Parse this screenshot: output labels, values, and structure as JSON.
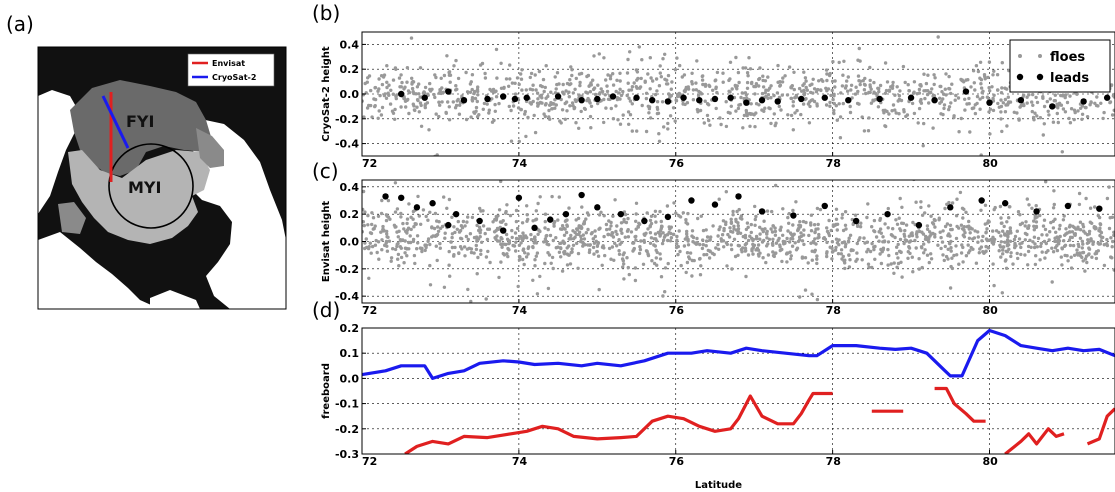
{
  "panels": {
    "a": "(a)",
    "b": "(b)",
    "c": "(c)",
    "d": "(d)"
  },
  "map": {
    "legend": [
      {
        "label": "Envisat",
        "color": "#e02020"
      },
      {
        "label": "CryoSat-2",
        "color": "#1a1aee"
      }
    ],
    "regions": {
      "fyi": "FYI",
      "myi": "MYI"
    }
  },
  "chart_data": [
    {
      "id": "b",
      "type": "scatter",
      "ylabel": "CryoSat-2 height",
      "xlim": [
        72,
        81.6
      ],
      "ylim": [
        -0.5,
        0.5
      ],
      "xticks": [
        72,
        74,
        76,
        78,
        80
      ],
      "yticks": [
        -0.4,
        -0.2,
        0.0,
        0.2,
        0.4
      ],
      "ytick_labels": [
        "-0.4",
        "-0.2",
        "0.0",
        "0.2",
        "0.4"
      ],
      "grid": true,
      "legend_position": "top-right",
      "series": [
        {
          "name": "floes",
          "color": "#999999",
          "points_summary": {
            "x_range": [
              72,
              81.6
            ],
            "center": 0.0,
            "spread": 0.15,
            "count": 1200
          }
        },
        {
          "name": "leads",
          "color": "#000000",
          "points": [
            [
              72.5,
              0.0
            ],
            [
              72.8,
              -0.03
            ],
            [
              73.1,
              0.02
            ],
            [
              73.3,
              -0.05
            ],
            [
              73.6,
              -0.04
            ],
            [
              73.8,
              -0.02
            ],
            [
              73.95,
              -0.04
            ],
            [
              74.1,
              -0.03
            ],
            [
              74.5,
              -0.02
            ],
            [
              74.8,
              -0.05
            ],
            [
              75.0,
              -0.04
            ],
            [
              75.2,
              -0.02
            ],
            [
              75.5,
              -0.03
            ],
            [
              75.7,
              -0.05
            ],
            [
              75.9,
              -0.06
            ],
            [
              76.1,
              -0.03
            ],
            [
              76.3,
              -0.05
            ],
            [
              76.5,
              -0.04
            ],
            [
              76.7,
              -0.03
            ],
            [
              76.9,
              -0.07
            ],
            [
              77.1,
              -0.05
            ],
            [
              77.3,
              -0.06
            ],
            [
              77.6,
              -0.04
            ],
            [
              77.9,
              -0.03
            ],
            [
              78.2,
              -0.05
            ],
            [
              78.6,
              -0.04
            ],
            [
              79.0,
              -0.03
            ],
            [
              79.3,
              -0.05
            ],
            [
              79.7,
              0.02
            ],
            [
              80.0,
              -0.07
            ],
            [
              80.4,
              -0.05
            ],
            [
              80.8,
              -0.1
            ],
            [
              81.2,
              -0.06
            ],
            [
              81.5,
              -0.03
            ]
          ]
        }
      ]
    },
    {
      "id": "c",
      "type": "scatter",
      "ylabel": "Envisat height",
      "xlim": [
        72,
        81.6
      ],
      "ylim": [
        -0.45,
        0.45
      ],
      "xticks": [
        72,
        74,
        76,
        78,
        80
      ],
      "yticks": [
        -0.4,
        -0.2,
        0.0,
        0.2,
        0.4
      ],
      "ytick_labels": [
        "-0.4",
        "-0.2",
        "0.0",
        "0.2",
        "0.4"
      ],
      "grid": true,
      "series": [
        {
          "name": "floes",
          "color": "#999999",
          "points_summary": {
            "x_range": [
              72,
              81.6
            ],
            "center": 0.02,
            "spread": 0.14,
            "count": 1600
          }
        },
        {
          "name": "leads",
          "color": "#000000",
          "points": [
            [
              72.3,
              0.33
            ],
            [
              72.5,
              0.32
            ],
            [
              72.7,
              0.25
            ],
            [
              72.9,
              0.28
            ],
            [
              73.1,
              0.12
            ],
            [
              73.2,
              0.2
            ],
            [
              73.5,
              0.15
            ],
            [
              73.8,
              0.08
            ],
            [
              74.0,
              0.32
            ],
            [
              74.2,
              0.1
            ],
            [
              74.4,
              0.16
            ],
            [
              74.6,
              0.2
            ],
            [
              74.8,
              0.34
            ],
            [
              75.0,
              0.25
            ],
            [
              75.3,
              0.2
            ],
            [
              75.6,
              0.15
            ],
            [
              75.9,
              0.18
            ],
            [
              76.2,
              0.3
            ],
            [
              76.5,
              0.27
            ],
            [
              76.8,
              0.33
            ],
            [
              77.1,
              0.22
            ],
            [
              77.5,
              0.19
            ],
            [
              77.9,
              0.26
            ],
            [
              78.3,
              0.15
            ],
            [
              78.7,
              0.2
            ],
            [
              79.1,
              0.12
            ],
            [
              79.5,
              0.25
            ],
            [
              79.9,
              0.3
            ],
            [
              80.2,
              0.28
            ],
            [
              80.6,
              0.22
            ],
            [
              81.0,
              0.26
            ],
            [
              81.4,
              0.24
            ]
          ]
        }
      ]
    },
    {
      "id": "d",
      "type": "line",
      "xlabel": "Latitude",
      "ylabel": "freeboard",
      "xlim": [
        72,
        81.6
      ],
      "ylim": [
        -0.3,
        0.2
      ],
      "xticks": [
        72,
        74,
        76,
        78,
        80
      ],
      "yticks": [
        -0.3,
        -0.2,
        -0.1,
        0.0,
        0.1,
        0.2
      ],
      "ytick_labels": [
        "-0.3",
        "-0.2",
        "-0.1",
        "0.0",
        "0.1",
        "0.2"
      ],
      "grid": true,
      "series": [
        {
          "name": "CryoSat-2",
          "color": "#1a1aee",
          "segments": [
            [
              [
                72.0,
                0.015
              ],
              [
                72.3,
                0.03
              ],
              [
                72.5,
                0.05
              ],
              [
                72.8,
                0.05
              ],
              [
                72.9,
                0.0
              ],
              [
                73.1,
                0.02
              ],
              [
                73.3,
                0.03
              ],
              [
                73.5,
                0.06
              ],
              [
                73.8,
                0.07
              ],
              [
                74.0,
                0.065
              ],
              [
                74.2,
                0.055
              ],
              [
                74.5,
                0.06
              ],
              [
                74.8,
                0.05
              ],
              [
                75.0,
                0.06
              ],
              [
                75.3,
                0.05
              ],
              [
                75.6,
                0.07
              ],
              [
                75.9,
                0.1
              ],
              [
                76.2,
                0.1
              ],
              [
                76.4,
                0.11
              ],
              [
                76.7,
                0.1
              ],
              [
                76.9,
                0.12
              ],
              [
                77.1,
                0.11
              ],
              [
                77.4,
                0.1
              ],
              [
                77.7,
                0.09
              ],
              [
                77.8,
                0.09
              ],
              [
                78.0,
                0.13
              ],
              [
                78.3,
                0.13
              ],
              [
                78.6,
                0.12
              ],
              [
                78.8,
                0.115
              ],
              [
                79.0,
                0.12
              ],
              [
                79.2,
                0.1
              ],
              [
                79.4,
                0.04
              ],
              [
                79.5,
                0.01
              ],
              [
                79.65,
                0.01
              ],
              [
                79.85,
                0.15
              ],
              [
                80.0,
                0.19
              ],
              [
                80.2,
                0.17
              ],
              [
                80.4,
                0.13
              ],
              [
                80.6,
                0.12
              ],
              [
                80.8,
                0.11
              ],
              [
                81.0,
                0.12
              ],
              [
                81.2,
                0.11
              ],
              [
                81.4,
                0.115
              ],
              [
                81.6,
                0.09
              ]
            ]
          ]
        },
        {
          "name": "Envisat",
          "color": "#e02020",
          "segments": [
            [
              [
                72.55,
                -0.3
              ],
              [
                72.7,
                -0.27
              ],
              [
                72.9,
                -0.25
              ],
              [
                73.1,
                -0.26
              ],
              [
                73.3,
                -0.23
              ],
              [
                73.6,
                -0.235
              ],
              [
                73.9,
                -0.22
              ],
              [
                74.1,
                -0.21
              ],
              [
                74.3,
                -0.19
              ],
              [
                74.5,
                -0.2
              ],
              [
                74.7,
                -0.23
              ],
              [
                75.0,
                -0.24
              ],
              [
                75.3,
                -0.235
              ],
              [
                75.5,
                -0.23
              ],
              [
                75.7,
                -0.17
              ],
              [
                75.9,
                -0.15
              ],
              [
                76.1,
                -0.16
              ],
              [
                76.3,
                -0.19
              ],
              [
                76.5,
                -0.21
              ],
              [
                76.7,
                -0.2
              ],
              [
                76.8,
                -0.16
              ],
              [
                76.95,
                -0.07
              ],
              [
                77.1,
                -0.15
              ],
              [
                77.3,
                -0.18
              ],
              [
                77.5,
                -0.18
              ],
              [
                77.6,
                -0.14
              ],
              [
                77.7,
                -0.085
              ],
              [
                77.75,
                -0.06
              ],
              [
                78.0,
                -0.06
              ]
            ],
            [
              [
                78.5,
                -0.13
              ],
              [
                78.9,
                -0.13
              ]
            ],
            [
              [
                79.3,
                -0.04
              ],
              [
                79.45,
                -0.04
              ],
              [
                79.55,
                -0.1
              ],
              [
                79.7,
                -0.14
              ],
              [
                79.8,
                -0.17
              ],
              [
                79.95,
                -0.17
              ]
            ],
            [
              [
                80.2,
                -0.3
              ],
              [
                80.4,
                -0.25
              ],
              [
                80.5,
                -0.22
              ],
              [
                80.6,
                -0.26
              ],
              [
                80.75,
                -0.2
              ],
              [
                80.85,
                -0.23
              ],
              [
                80.95,
                -0.22
              ]
            ],
            [
              [
                81.25,
                -0.26
              ],
              [
                81.4,
                -0.24
              ],
              [
                81.5,
                -0.15
              ],
              [
                81.6,
                -0.12
              ]
            ]
          ]
        }
      ]
    }
  ]
}
